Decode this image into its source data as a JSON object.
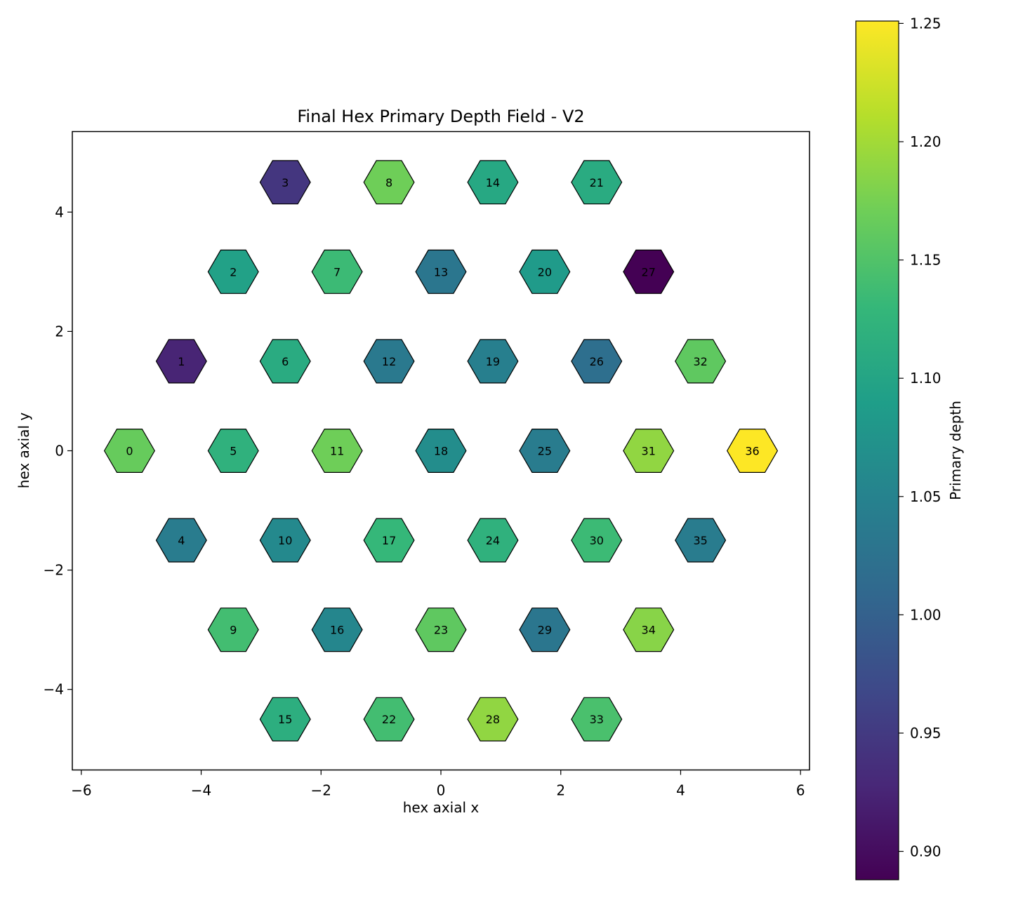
{
  "chart_data": {
    "type": "heatmap",
    "title": "Final Hex Primary Depth Field - V2",
    "xlabel": "hex axial x",
    "ylabel": "hex axial y",
    "xlim": [
      -6.15,
      6.15
    ],
    "ylim": [
      -5.35,
      5.35
    ],
    "xticks": [
      -6,
      -4,
      -2,
      0,
      2,
      4,
      6
    ],
    "yticks": [
      -4,
      -2,
      0,
      2,
      4
    ],
    "grid": false,
    "colormap": "viridis",
    "colorbar": {
      "label": "Primary depth",
      "range": [
        0.888,
        1.251
      ],
      "ticks": [
        0.9,
        0.95,
        1.0,
        1.05,
        1.1,
        1.15,
        1.2,
        1.25
      ],
      "tick_labels": [
        "0.90",
        "0.95",
        "1.00",
        "1.05",
        "1.10",
        "1.15",
        "1.20",
        "1.25"
      ]
    },
    "cells": [
      {
        "id": 0,
        "x": -5.196,
        "y": 0.0,
        "value": 1.165
      },
      {
        "id": 1,
        "x": -4.33,
        "y": 1.5,
        "value": 0.925
      },
      {
        "id": 2,
        "x": -3.464,
        "y": 3.0,
        "value": 1.095
      },
      {
        "id": 3,
        "x": -2.598,
        "y": 4.5,
        "value": 0.945
      },
      {
        "id": 4,
        "x": -4.33,
        "y": -1.5,
        "value": 1.04
      },
      {
        "id": 5,
        "x": -3.464,
        "y": 0.0,
        "value": 1.12
      },
      {
        "id": 6,
        "x": -2.598,
        "y": 1.5,
        "value": 1.11
      },
      {
        "id": 7,
        "x": -1.732,
        "y": 3.0,
        "value": 1.135
      },
      {
        "id": 8,
        "x": -0.866,
        "y": 4.5,
        "value": 1.17
      },
      {
        "id": 9,
        "x": -3.464,
        "y": -3.0,
        "value": 1.14
      },
      {
        "id": 10,
        "x": -2.598,
        "y": -1.5,
        "value": 1.06
      },
      {
        "id": 11,
        "x": -1.732,
        "y": 0.0,
        "value": 1.17
      },
      {
        "id": 12,
        "x": -0.866,
        "y": 1.5,
        "value": 1.035
      },
      {
        "id": 13,
        "x": 0.0,
        "y": 3.0,
        "value": 1.03
      },
      {
        "id": 14,
        "x": 0.866,
        "y": 4.5,
        "value": 1.105
      },
      {
        "id": 15,
        "x": -2.598,
        "y": -4.5,
        "value": 1.115
      },
      {
        "id": 16,
        "x": -1.732,
        "y": -3.0,
        "value": 1.055
      },
      {
        "id": 17,
        "x": -0.866,
        "y": -1.5,
        "value": 1.13
      },
      {
        "id": 18,
        "x": 0.0,
        "y": 0.0,
        "value": 1.065
      },
      {
        "id": 19,
        "x": 0.866,
        "y": 1.5,
        "value": 1.045
      },
      {
        "id": 20,
        "x": 1.732,
        "y": 3.0,
        "value": 1.085
      },
      {
        "id": 21,
        "x": 2.598,
        "y": 4.5,
        "value": 1.11
      },
      {
        "id": 22,
        "x": -0.866,
        "y": -4.5,
        "value": 1.14
      },
      {
        "id": 23,
        "x": 0.0,
        "y": -3.0,
        "value": 1.16
      },
      {
        "id": 24,
        "x": 0.866,
        "y": -1.5,
        "value": 1.12
      },
      {
        "id": 25,
        "x": 1.732,
        "y": 0.0,
        "value": 1.04
      },
      {
        "id": 26,
        "x": 2.598,
        "y": 1.5,
        "value": 1.02
      },
      {
        "id": 27,
        "x": 3.464,
        "y": 3.0,
        "value": 0.888
      },
      {
        "id": 28,
        "x": 0.866,
        "y": -4.5,
        "value": 1.19
      },
      {
        "id": 29,
        "x": 1.732,
        "y": -3.0,
        "value": 1.03
      },
      {
        "id": 30,
        "x": 2.598,
        "y": -1.5,
        "value": 1.135
      },
      {
        "id": 31,
        "x": 3.464,
        "y": 0.0,
        "value": 1.19
      },
      {
        "id": 32,
        "x": 4.33,
        "y": 1.5,
        "value": 1.16
      },
      {
        "id": 33,
        "x": 2.598,
        "y": -4.5,
        "value": 1.145
      },
      {
        "id": 34,
        "x": 3.464,
        "y": -3.0,
        "value": 1.185
      },
      {
        "id": 35,
        "x": 4.33,
        "y": -1.5,
        "value": 1.04
      },
      {
        "id": 36,
        "x": 5.196,
        "y": 0.0,
        "value": 1.251
      }
    ]
  }
}
